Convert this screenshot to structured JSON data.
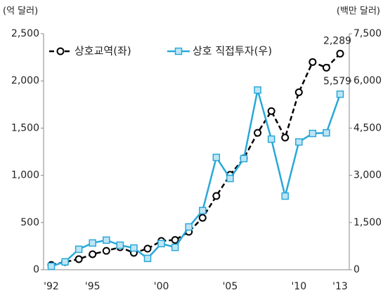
{
  "chart_data": {
    "type": "line",
    "y_label": "(억 달러)",
    "y2_label": "(백만 달러)",
    "categories": [
      "'92",
      null,
      null,
      "'95",
      null,
      null,
      null,
      null,
      "'00",
      null,
      null,
      null,
      null,
      "'05",
      null,
      null,
      null,
      null,
      "'10",
      null,
      null,
      "'13"
    ],
    "series": [
      {
        "name": "상호교역(좌)",
        "color": "#000000",
        "axis": "y",
        "values": [
          50,
          82,
          112,
          164,
          200,
          238,
          179,
          223,
          305,
          315,
          402,
          550,
          781,
          1005,
          1180,
          1450,
          1680,
          1400,
          1880,
          2200,
          2140,
          2289
        ],
        "value_labels": [
          null,
          null,
          null,
          null,
          null,
          null,
          null,
          null,
          null,
          null,
          null,
          null,
          null,
          null,
          null,
          null,
          null,
          null,
          null,
          null,
          null,
          "2,289"
        ]
      },
      {
        "name": "상호 직접투자(우)",
        "color": "#29a8d9",
        "axis": "y2",
        "values": [
          110,
          250,
          650,
          850,
          940,
          780,
          690,
          360,
          830,
          710,
          1360,
          1880,
          3570,
          2900,
          3530,
          5710,
          4150,
          2340,
          4060,
          4330,
          4350,
          5579
        ],
        "value_labels": [
          null,
          null,
          null,
          null,
          null,
          null,
          null,
          null,
          null,
          null,
          null,
          null,
          null,
          null,
          null,
          null,
          null,
          null,
          null,
          null,
          null,
          "5,579"
        ]
      }
    ],
    "ylim": [
      0,
      2500
    ],
    "yticks": [
      0,
      500,
      {
        "value": 1000,
        "label": "1,000"
      },
      {
        "value": 1500,
        "label": "1,500"
      },
      {
        "value": 2000,
        "label": "2,000"
      },
      {
        "value": 2500,
        "label": "2,500"
      }
    ],
    "y2lim": [
      0,
      7500
    ],
    "y2ticks": [
      0,
      {
        "value": 1500,
        "label": "1,500"
      },
      {
        "value": 3000,
        "label": "3,000"
      },
      {
        "value": 4500,
        "label": "4,500"
      },
      {
        "value": 6000,
        "label": "6,000"
      },
      {
        "value": 7500,
        "label": "7,500"
      }
    ],
    "legend": "top-left"
  }
}
